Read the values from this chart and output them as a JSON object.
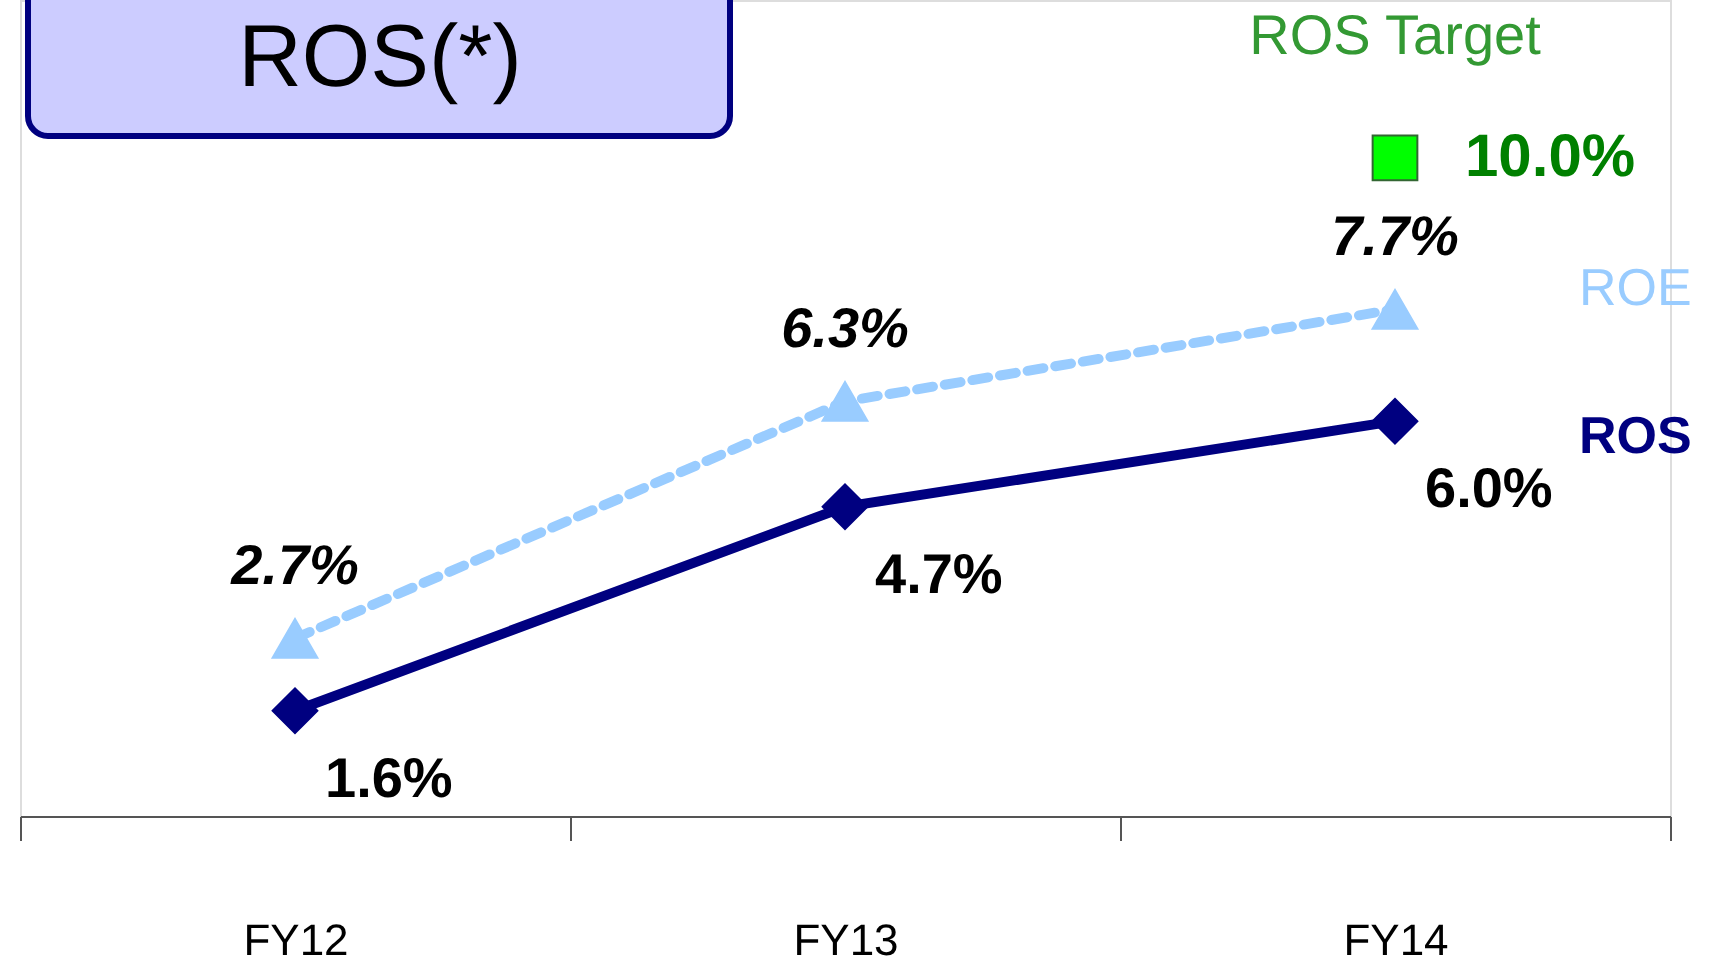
{
  "chart_data": {
    "type": "line",
    "title": "ROS(*)",
    "categories": [
      "FY12",
      "FY13",
      "FY14"
    ],
    "grid": false,
    "tick_labels": "x",
    "series": [
      {
        "name": "ROE",
        "color": "#99ccff",
        "values": [
          2.7,
          6.3,
          7.7
        ],
        "value_labels": [
          "2.7%",
          "6.3%",
          "7.7%"
        ],
        "line_style": "dashed",
        "marker": "triangle"
      },
      {
        "name": "ROS",
        "color": "#000080",
        "values": [
          1.6,
          4.7,
          6.0
        ],
        "value_labels": [
          "1.6%",
          "4.7%",
          "6.0%"
        ],
        "line_style": "solid",
        "marker": "diamond"
      },
      {
        "name": "ROS Target",
        "type": "scatter",
        "color": "#00ff00",
        "values": [
          null,
          null,
          10.0
        ],
        "value_labels": [
          null,
          null,
          "10.0%"
        ],
        "marker": "square"
      }
    ]
  }
}
